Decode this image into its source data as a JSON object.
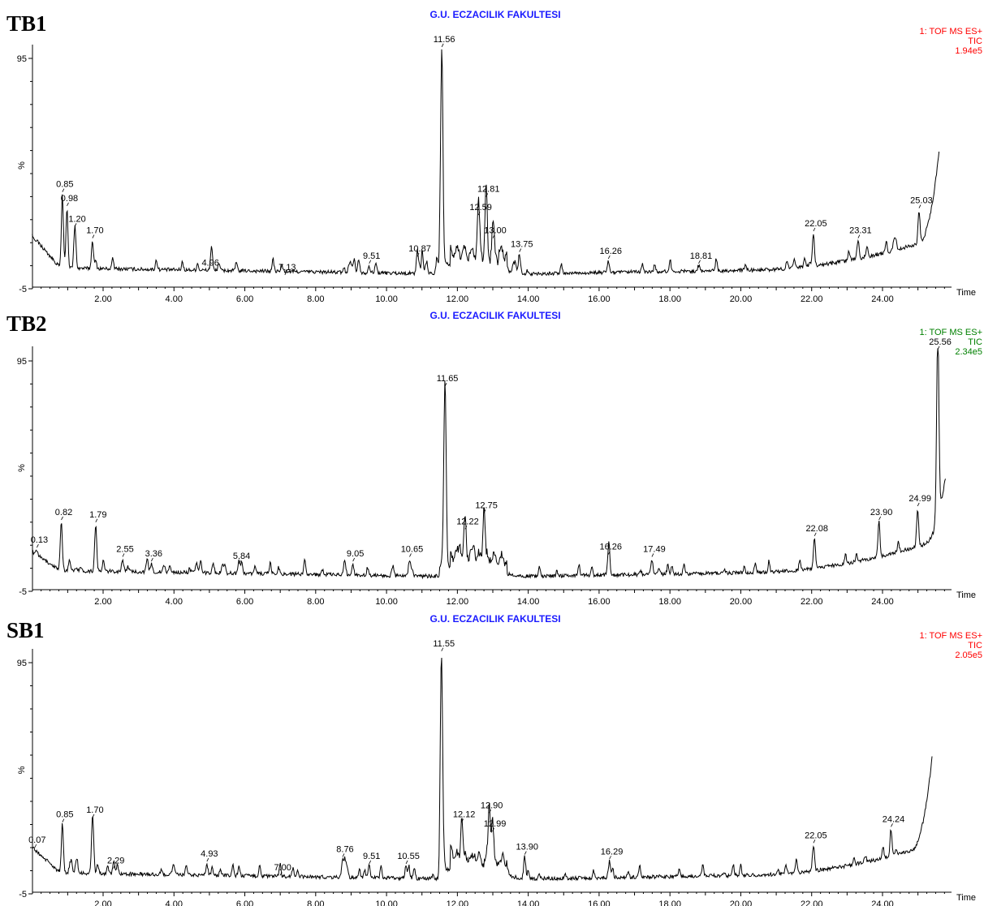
{
  "chart_data": [
    {
      "type": "line",
      "panel_label": "TB1",
      "header": "G.U. ECZACILIK FAKULTESI",
      "info": [
        "1: TOF MS ES+",
        "TIC",
        "1.94e5"
      ],
      "info_color": "#ff0000",
      "header_color": "#1a1aff",
      "xlabel": "Time",
      "ylabel": "%",
      "xlim": [
        0.0,
        25.8
      ],
      "ylim": [
        -5,
        95
      ],
      "x_ticks": [
        "2.00",
        "4.00",
        "6.00",
        "8.00",
        "10.00",
        "12.00",
        "14.00",
        "16.00",
        "18.00",
        "20.00",
        "22.00",
        "24.00"
      ],
      "y_ticks": [
        "95",
        "-5"
      ],
      "peaks": [
        {
          "rt": "0.85",
          "x": 0.85,
          "y": 37
        },
        {
          "rt": "0.98",
          "x": 0.98,
          "y": 31
        },
        {
          "rt": "1.20",
          "x": 1.2,
          "y": 22
        },
        {
          "rt": "1.70",
          "x": 1.7,
          "y": 17
        },
        {
          "rt": "4.96",
          "x": 4.96,
          "y": 3
        },
        {
          "rt": "7.13",
          "x": 7.13,
          "y": 1
        },
        {
          "rt": "9.51",
          "x": 9.51,
          "y": 6
        },
        {
          "rt": "10.87",
          "x": 10.87,
          "y": 9
        },
        {
          "rt": "11.56",
          "x": 11.56,
          "y": 100
        },
        {
          "rt": "12.59",
          "x": 12.59,
          "y": 27
        },
        {
          "rt": "12.81",
          "x": 12.81,
          "y": 35
        },
        {
          "rt": "13.00",
          "x": 13.0,
          "y": 17
        },
        {
          "rt": "13.75",
          "x": 13.75,
          "y": 11
        },
        {
          "rt": "16.26",
          "x": 16.26,
          "y": 8
        },
        {
          "rt": "18.81",
          "x": 18.81,
          "y": 6
        },
        {
          "rt": "22.05",
          "x": 22.05,
          "y": 20
        },
        {
          "rt": "23.31",
          "x": 23.31,
          "y": 17
        },
        {
          "rt": "25.03",
          "x": 25.03,
          "y": 30
        }
      ],
      "end_y": 55,
      "start_y": 18
    },
    {
      "type": "line",
      "panel_label": "TB2",
      "header": "G.U. ECZACILIK FAKULTESI",
      "info": [
        "1: TOF MS ES+",
        "TIC",
        "2.34e5"
      ],
      "info_color": "#008000",
      "header_color": "#1a1aff",
      "xlabel": "Time",
      "ylabel": "%",
      "xlim": [
        0.0,
        25.8
      ],
      "ylim": [
        -5,
        95
      ],
      "x_ticks": [
        "2.00",
        "4.00",
        "6.00",
        "8.00",
        "10.00",
        "12.00",
        "14.00",
        "16.00",
        "18.00",
        "20.00",
        "22.00",
        "24.00"
      ],
      "y_ticks": [
        "95",
        "-5"
      ],
      "peaks": [
        {
          "rt": "0.13",
          "x": 0.13,
          "y": 14
        },
        {
          "rt": "0.82",
          "x": 0.82,
          "y": 26
        },
        {
          "rt": "1.79",
          "x": 1.79,
          "y": 25
        },
        {
          "rt": "2.55",
          "x": 2.55,
          "y": 10
        },
        {
          "rt": "3.36",
          "x": 3.36,
          "y": 8
        },
        {
          "rt": "5.84",
          "x": 5.84,
          "y": 7
        },
        {
          "rt": "9.05",
          "x": 9.05,
          "y": 8
        },
        {
          "rt": "10.65",
          "x": 10.65,
          "y": 10
        },
        {
          "rt": "11.65",
          "x": 11.65,
          "y": 84
        },
        {
          "rt": "12.22",
          "x": 12.22,
          "y": 22
        },
        {
          "rt": "12.75",
          "x": 12.75,
          "y": 29
        },
        {
          "rt": "16.26",
          "x": 16.26,
          "y": 11
        },
        {
          "rt": "17.49",
          "x": 17.49,
          "y": 10
        },
        {
          "rt": "22.08",
          "x": 22.08,
          "y": 19
        },
        {
          "rt": "23.90",
          "x": 23.9,
          "y": 26
        },
        {
          "rt": "24.99",
          "x": 24.99,
          "y": 32
        },
        {
          "rt": "25.56",
          "x": 25.56,
          "y": 100
        }
      ],
      "end_y": 45,
      "start_y": 12
    },
    {
      "type": "line",
      "panel_label": "SB1",
      "header": "G.U. ECZACILIK FAKULTESI",
      "info": [
        "1: TOF MS ES+",
        "TIC",
        "2.05e5"
      ],
      "info_color": "#ff0000",
      "header_color": "#1a1aff",
      "xlabel": "Time",
      "ylabel": "%",
      "xlim": [
        0.0,
        25.8
      ],
      "ylim": [
        -5,
        95
      ],
      "x_ticks": [
        "2.00",
        "4.00",
        "6.00",
        "8.00",
        "10.00",
        "12.00",
        "14.00",
        "16.00",
        "18.00",
        "20.00",
        "22.00",
        "24.00"
      ],
      "y_ticks": [
        "95",
        "-5"
      ],
      "peaks": [
        {
          "rt": "0.07",
          "x": 0.07,
          "y": 15
        },
        {
          "rt": "0.85",
          "x": 0.85,
          "y": 26
        },
        {
          "rt": "1.70",
          "x": 1.7,
          "y": 28
        },
        {
          "rt": "2.29",
          "x": 2.29,
          "y": 6
        },
        {
          "rt": "4.93",
          "x": 4.93,
          "y": 9
        },
        {
          "rt": "7.00",
          "x": 7.0,
          "y": 3
        },
        {
          "rt": "8.76",
          "x": 8.76,
          "y": 11
        },
        {
          "rt": "9.51",
          "x": 9.51,
          "y": 8
        },
        {
          "rt": "10.55",
          "x": 10.55,
          "y": 8
        },
        {
          "rt": "11.55",
          "x": 11.55,
          "y": 100
        },
        {
          "rt": "12.12",
          "x": 12.12,
          "y": 26
        },
        {
          "rt": "12.90",
          "x": 12.9,
          "y": 30
        },
        {
          "rt": "12.99",
          "x": 12.99,
          "y": 22
        },
        {
          "rt": "13.90",
          "x": 13.9,
          "y": 12
        },
        {
          "rt": "16.29",
          "x": 16.29,
          "y": 10
        },
        {
          "rt": "22.05",
          "x": 22.05,
          "y": 17
        },
        {
          "rt": "24.24",
          "x": 24.24,
          "y": 24
        }
      ],
      "end_y": 54,
      "start_y": 15
    }
  ]
}
